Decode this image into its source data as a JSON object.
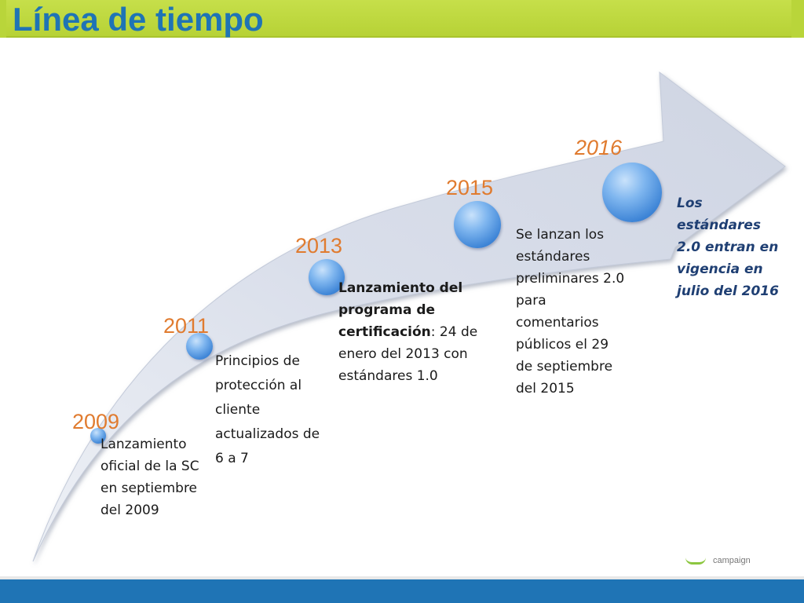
{
  "slide": {
    "title": "Línea de tiempo",
    "footer_brand": "campaign"
  },
  "timeline": [
    {
      "year": "2009",
      "description": "Lanzamiento oficial de la SC en septiembre del 2009"
    },
    {
      "year": "2011",
      "description": "Principios de protección al cliente actualizados de 6 a 7"
    },
    {
      "year": "2013",
      "description_bold": "Lanzamiento del programa de certificación",
      "description_rest": ": 24 de enero del 2013 con estándares 1.0"
    },
    {
      "year": "2015",
      "description": "Se lanzan los estándares preliminares 2.0 para comentarios públicos el 29 de septiembre del 2015"
    },
    {
      "year": "2016",
      "description": "Los estándares 2.0 entran en vigencia en julio del 2016"
    }
  ],
  "colors": {
    "title": "#1f74b5",
    "title_bar": "#b9d53a",
    "year": "#e07b2f",
    "arrow": "#d3d9e6",
    "node": "#4a90e2",
    "footer": "#1f74b5"
  }
}
